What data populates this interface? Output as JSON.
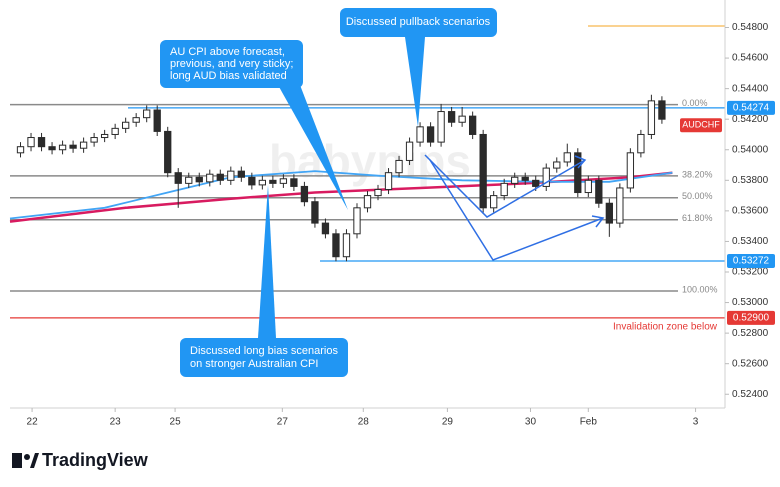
{
  "chart_data": {
    "type": "candlestick",
    "symbol": "AUDCHF",
    "candle_color": "#2b2b2b",
    "open": [
      0.5398,
      0.5402,
      0.5408,
      0.5402,
      0.54,
      0.5403,
      0.5401,
      0.5405,
      0.5408,
      0.541,
      0.5414,
      0.5418,
      0.5421,
      0.5426,
      0.5412,
      0.5385,
      0.5378,
      0.5382,
      0.5379,
      0.5384,
      0.538,
      0.5386,
      0.5382,
      0.5377,
      0.538,
      0.5378,
      0.5381,
      0.5376,
      0.5366,
      0.5352,
      0.5345,
      0.533,
      0.5345,
      0.5362,
      0.537,
      0.5374,
      0.5385,
      0.5393,
      0.5405,
      0.5415,
      0.5405,
      0.5425,
      0.5418,
      0.5422,
      0.541,
      0.5362,
      0.537,
      0.5378,
      0.5382,
      0.538,
      0.5376,
      0.5388,
      0.5392,
      0.5398,
      0.5372,
      0.538,
      0.5365,
      0.5352,
      0.5375,
      0.5398,
      0.541,
      0.5432
    ],
    "high": [
      0.5405,
      0.5411,
      0.5411,
      0.5405,
      0.5406,
      0.5406,
      0.5408,
      0.5411,
      0.5413,
      0.5417,
      0.5421,
      0.5424,
      0.5429,
      0.5429,
      0.5415,
      0.5388,
      0.5385,
      0.5385,
      0.5387,
      0.5387,
      0.5389,
      0.5389,
      0.5385,
      0.5383,
      0.5383,
      0.5384,
      0.5384,
      0.5379,
      0.5369,
      0.5355,
      0.5348,
      0.5348,
      0.5365,
      0.5373,
      0.5377,
      0.5388,
      0.5396,
      0.5408,
      0.5418,
      0.5418,
      0.543,
      0.5428,
      0.5428,
      0.5425,
      0.5413,
      0.5373,
      0.5381,
      0.5385,
      0.5385,
      0.5383,
      0.5391,
      0.5395,
      0.5404,
      0.5401,
      0.5383,
      0.5383,
      0.5368,
      0.5378,
      0.5401,
      0.5413,
      0.5436,
      0.5435
    ],
    "low": [
      0.5395,
      0.5399,
      0.5399,
      0.5397,
      0.5397,
      0.5398,
      0.5398,
      0.5402,
      0.5405,
      0.5407,
      0.5411,
      0.5415,
      0.5418,
      0.5409,
      0.5382,
      0.5362,
      0.5375,
      0.5376,
      0.5376,
      0.5377,
      0.5377,
      0.5379,
      0.5374,
      0.5374,
      0.5375,
      0.5375,
      0.5373,
      0.5363,
      0.5349,
      0.5342,
      0.5327,
      0.5327,
      0.5342,
      0.5359,
      0.5367,
      0.5371,
      0.5382,
      0.539,
      0.5402,
      0.5402,
      0.5402,
      0.5415,
      0.5415,
      0.5407,
      0.5358,
      0.5359,
      0.5367,
      0.5375,
      0.5377,
      0.5373,
      0.5373,
      0.5385,
      0.5389,
      0.5369,
      0.5369,
      0.5362,
      0.5343,
      0.5349,
      0.5372,
      0.5395,
      0.5407,
      0.5417
    ],
    "close": [
      0.5402,
      0.5408,
      0.5402,
      0.54,
      0.5403,
      0.5401,
      0.5405,
      0.5408,
      0.541,
      0.5414,
      0.5418,
      0.5421,
      0.5426,
      0.5412,
      0.5385,
      0.5378,
      0.5382,
      0.5379,
      0.5384,
      0.538,
      0.5386,
      0.5382,
      0.5377,
      0.538,
      0.5378,
      0.5381,
      0.5376,
      0.5366,
      0.5352,
      0.5345,
      0.533,
      0.5345,
      0.5362,
      0.537,
      0.5374,
      0.5385,
      0.5393,
      0.5405,
      0.5415,
      0.5405,
      0.5425,
      0.5418,
      0.5422,
      0.541,
      0.5362,
      0.537,
      0.5378,
      0.5382,
      0.538,
      0.5376,
      0.5388,
      0.5392,
      0.5398,
      0.5372,
      0.538,
      0.5365,
      0.5352,
      0.5375,
      0.5398,
      0.541,
      0.5432,
      0.542
    ],
    "moving_averages": [
      {
        "color": "#d81b60",
        "x": [
          -1,
          10,
          20,
          28,
          38,
          48,
          58,
          62
        ],
        "values": [
          0.5353,
          0.5362,
          0.5368,
          0.5372,
          0.5375,
          0.5378,
          0.5382,
          0.5385
        ]
      },
      {
        "color": "#42a5f5",
        "x": [
          -1,
          8,
          14,
          20,
          28,
          34,
          42,
          50,
          56,
          62
        ],
        "values": [
          0.5355,
          0.5362,
          0.5372,
          0.5382,
          0.5386,
          0.5383,
          0.538,
          0.5379,
          0.5379,
          0.5385
        ]
      }
    ],
    "xlim": [
      -1,
      67
    ],
    "xticks": [
      {
        "value": 1.1,
        "label": "22"
      },
      {
        "value": 9,
        "label": "23"
      },
      {
        "value": 14.7,
        "label": "25"
      },
      {
        "value": 24.9,
        "label": "27"
      },
      {
        "value": 32.6,
        "label": "28"
      },
      {
        "value": 40.6,
        "label": "29"
      },
      {
        "value": 48.5,
        "label": "30"
      },
      {
        "value": 54,
        "label": "Feb"
      },
      {
        "value": 64.2,
        "label": "3"
      }
    ],
    "ylim": [
      0.5231,
      0.5498
    ],
    "yticks": [
      {
        "value": 0.548,
        "label": "0.54800"
      },
      {
        "value": 0.546,
        "label": "0.54600"
      },
      {
        "value": 0.544,
        "label": "0.54400"
      },
      {
        "value": 0.542,
        "label": "0.54200"
      },
      {
        "value": 0.54,
        "label": "0.54000"
      },
      {
        "value": 0.538,
        "label": "0.53800"
      },
      {
        "value": 0.536,
        "label": "0.53600"
      },
      {
        "value": 0.534,
        "label": "0.53400"
      },
      {
        "value": 0.532,
        "label": "0.53200"
      },
      {
        "value": 0.53,
        "label": "0.53000"
      },
      {
        "value": 0.528,
        "label": "0.52800"
      },
      {
        "value": 0.526,
        "label": "0.52600"
      },
      {
        "value": 0.524,
        "label": "0.52400"
      }
    ],
    "grid": false,
    "fib_color": "#8a8a8a",
    "fib_levels": [
      {
        "value": 0.54295,
        "label": "0.00%"
      },
      {
        "value": 0.53829,
        "label": "38.20%"
      },
      {
        "value": 0.53686,
        "label": "50.00%"
      },
      {
        "value": 0.53542,
        "label": "61.80%"
      },
      {
        "value": 0.53076,
        "label": "100.00%"
      }
    ],
    "price_lines": [
      {
        "value": 0.54274,
        "color": "#2196f3"
      },
      {
        "value": 0.53272,
        "color": "#2196f3"
      },
      {
        "value": 0.529,
        "label": "0.52900",
        "color": "#e53935"
      }
    ],
    "orange_line": {
      "value": 0.5481,
      "color": "#f5a623"
    },
    "invalidation_note": "Invalidation zone below",
    "annotations": [
      {
        "lines": [
          "Discussed pullback scenarios"
        ]
      },
      {
        "lines": [
          "AU CPI above forecast,",
          "previous, and very sticky;",
          "long AUD bias validated"
        ]
      },
      {
        "lines": [
          "Discussed long bias scenarios",
          "on stronger Australian CPI"
        ]
      }
    ],
    "watermark": "babypips",
    "brand": "TradingView"
  }
}
